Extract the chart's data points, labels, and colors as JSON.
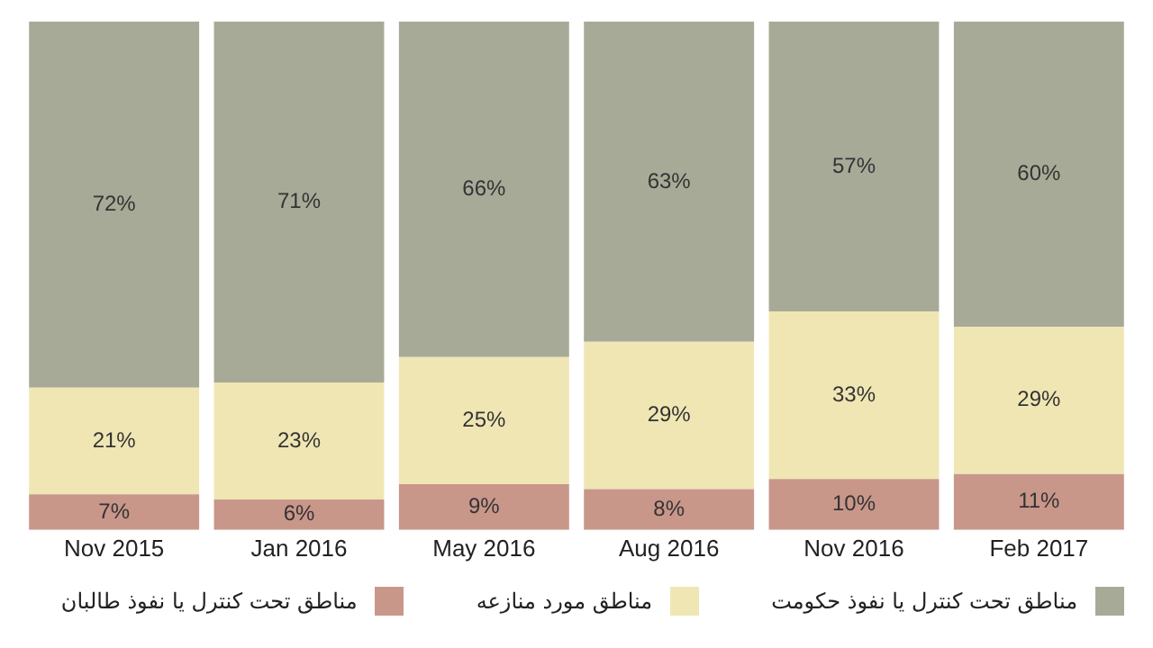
{
  "chart_data": {
    "type": "bar",
    "stacked": true,
    "legend": "bottom",
    "grid": false,
    "tick_labels": "x",
    "categories": [
      "Nov 2015",
      "Jan 2016",
      "May 2016",
      "Aug 2016",
      "Nov 2016",
      "Feb 2017"
    ],
    "series": [
      {
        "name": "مناطق تحت کنترل یا نفوذ طالبان",
        "color": "#c9968a",
        "values": [
          7,
          6,
          9,
          8,
          10,
          11
        ],
        "value_labels": [
          "7%",
          "6%",
          "9%",
          "8%",
          "10%",
          "11%"
        ]
      },
      {
        "name": "مناطق مورد منازعه",
        "color": "#f0e6b4",
        "values": [
          21,
          23,
          25,
          29,
          33,
          29
        ],
        "value_labels": [
          "21%",
          "23%",
          "25%",
          "29%",
          "33%",
          "29%"
        ]
      },
      {
        "name": "مناطق تحت کنترل یا نفوذ حکومت",
        "color": "#a8aa98",
        "values": [
          72,
          71,
          66,
          63,
          57,
          60
        ],
        "value_labels": [
          "72%",
          "71%",
          "66%",
          "63%",
          "57%",
          "60%"
        ]
      }
    ]
  }
}
